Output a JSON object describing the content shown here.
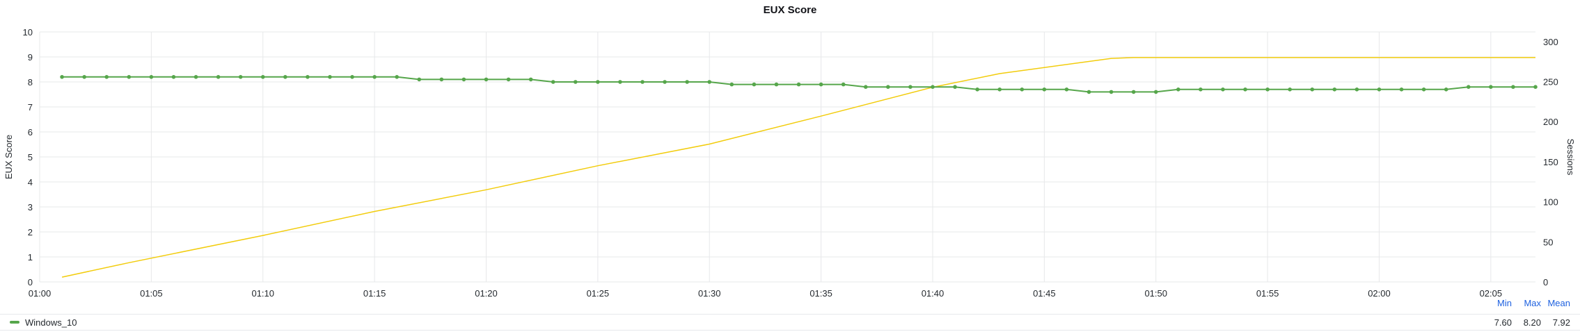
{
  "panel": {
    "title": "EUX Score"
  },
  "legend": {
    "headers": {
      "min": "Min",
      "max": "Max",
      "mean": "Mean"
    },
    "series": {
      "name": "Windows_10",
      "min": "7.60",
      "max": "8.20",
      "mean": "7.92",
      "color": "#56a64b"
    }
  },
  "chart_data": {
    "type": "line",
    "title": "EUX Score",
    "grid": true,
    "x": {
      "tick_labels": [
        "01:00",
        "01:05",
        "01:10",
        "01:15",
        "01:20",
        "01:25",
        "01:30",
        "01:35",
        "01:40",
        "01:45",
        "01:50",
        "01:55",
        "02:00",
        "02:05"
      ],
      "range": [
        "01:00",
        "02:07"
      ]
    },
    "y_left": {
      "label": "EUX Score",
      "ylim": [
        0,
        10
      ],
      "ticks": [
        "0",
        "1",
        "2",
        "3",
        "4",
        "5",
        "6",
        "7",
        "8",
        "9",
        "10"
      ]
    },
    "y_right": {
      "label": "Sessions",
      "ylim": [
        0,
        312
      ],
      "ticks": [
        "0",
        "50",
        "100",
        "150",
        "200",
        "250",
        "300"
      ]
    },
    "series": [
      {
        "name": "Windows_10",
        "axis": "left",
        "color": "#56a64b",
        "points": true,
        "x": [
          "01:01",
          "01:02",
          "01:03",
          "01:04",
          "01:05",
          "01:06",
          "01:07",
          "01:08",
          "01:09",
          "01:10",
          "01:11",
          "01:12",
          "01:13",
          "01:14",
          "01:15",
          "01:16",
          "01:17",
          "01:18",
          "01:19",
          "01:20",
          "01:21",
          "01:22",
          "01:23",
          "01:24",
          "01:25",
          "01:26",
          "01:27",
          "01:28",
          "01:29",
          "01:30",
          "01:31",
          "01:32",
          "01:33",
          "01:34",
          "01:35",
          "01:36",
          "01:37",
          "01:38",
          "01:39",
          "01:40",
          "01:41",
          "01:42",
          "01:43",
          "01:44",
          "01:45",
          "01:46",
          "01:47",
          "01:48",
          "01:49",
          "01:50",
          "01:51",
          "01:52",
          "01:53",
          "01:54",
          "01:55",
          "01:56",
          "01:57",
          "01:58",
          "01:59",
          "02:00",
          "02:01",
          "02:02",
          "02:03",
          "02:04",
          "02:05",
          "02:06",
          "02:07"
        ],
        "values": [
          8.2,
          8.2,
          8.2,
          8.2,
          8.2,
          8.2,
          8.2,
          8.2,
          8.2,
          8.2,
          8.2,
          8.2,
          8.2,
          8.2,
          8.2,
          8.2,
          8.1,
          8.1,
          8.1,
          8.1,
          8.1,
          8.1,
          8.0,
          8.0,
          8.0,
          8.0,
          8.0,
          8.0,
          8.0,
          8.0,
          7.9,
          7.9,
          7.9,
          7.9,
          7.9,
          7.9,
          7.8,
          7.8,
          7.8,
          7.8,
          7.8,
          7.7,
          7.7,
          7.7,
          7.7,
          7.7,
          7.6,
          7.6,
          7.6,
          7.6,
          7.7,
          7.7,
          7.7,
          7.7,
          7.7,
          7.7,
          7.7,
          7.7,
          7.7,
          7.7,
          7.7,
          7.7,
          7.7,
          7.8,
          7.8,
          7.8,
          7.8
        ]
      },
      {
        "name": "",
        "axis": "right",
        "color": "#f2cc0c",
        "points": false,
        "x": [
          "01:01",
          "01:04",
          "01:10",
          "01:15",
          "01:20",
          "01:25",
          "01:30",
          "01:35",
          "01:40",
          "01:43",
          "01:48",
          "01:49",
          "02:07"
        ],
        "values": [
          6,
          24,
          58,
          88,
          115,
          145,
          172,
          207,
          243,
          260,
          279,
          280,
          280
        ]
      }
    ]
  }
}
